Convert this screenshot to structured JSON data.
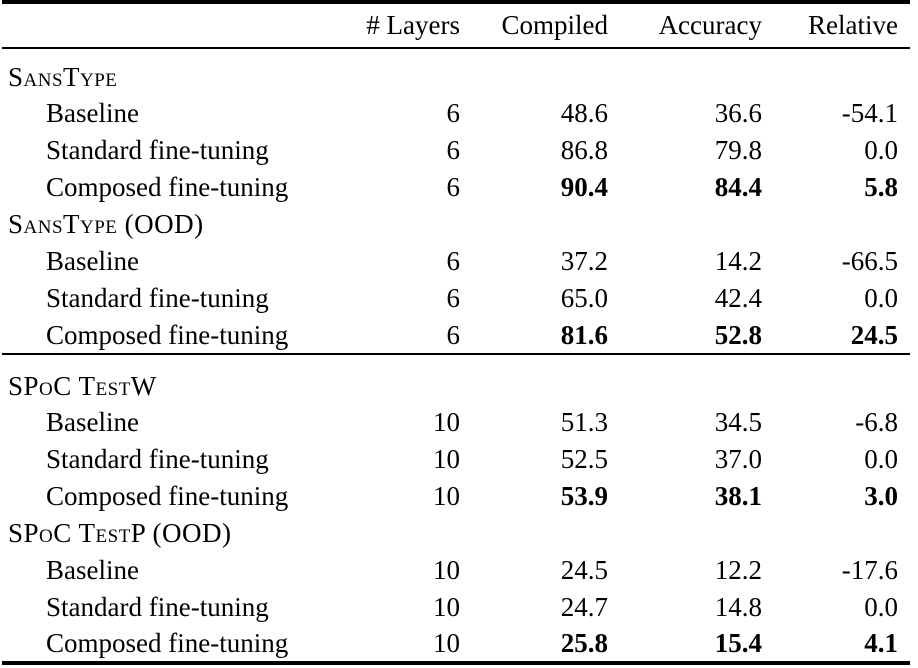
{
  "colors": {
    "text": "#000000",
    "background": "#ffffff"
  },
  "table": {
    "columns": [
      "",
      "# Layers",
      "Compiled",
      "Accuracy",
      "Relative"
    ],
    "sections": [
      {
        "title": "SansType",
        "rule_above": false,
        "rows": [
          {
            "label": "Baseline",
            "layers": "6",
            "compiled": "48.6",
            "accuracy": "36.6",
            "relative": "-54.1",
            "bold": false
          },
          {
            "label": "Standard fine-tuning",
            "layers": "6",
            "compiled": "86.8",
            "accuracy": "79.8",
            "relative": "0.0",
            "bold": false
          },
          {
            "label": "Composed fine-tuning",
            "layers": "6",
            "compiled": "90.4",
            "accuracy": "84.4",
            "relative": "5.8",
            "bold": true
          }
        ]
      },
      {
        "title": "SansType (OOD)",
        "rule_above": false,
        "rows": [
          {
            "label": "Baseline",
            "layers": "6",
            "compiled": "37.2",
            "accuracy": "14.2",
            "relative": "-66.5",
            "bold": false
          },
          {
            "label": "Standard fine-tuning",
            "layers": "6",
            "compiled": "65.0",
            "accuracy": "42.4",
            "relative": "0.0",
            "bold": false
          },
          {
            "label": "Composed fine-tuning",
            "layers": "6",
            "compiled": "81.6",
            "accuracy": "52.8",
            "relative": "24.5",
            "bold": true
          }
        ]
      },
      {
        "title": "SPoC TestW",
        "rule_above": true,
        "rows": [
          {
            "label": "Baseline",
            "layers": "10",
            "compiled": "51.3",
            "accuracy": "34.5",
            "relative": "-6.8",
            "bold": false
          },
          {
            "label": "Standard fine-tuning",
            "layers": "10",
            "compiled": "52.5",
            "accuracy": "37.0",
            "relative": "0.0",
            "bold": false
          },
          {
            "label": "Composed fine-tuning",
            "layers": "10",
            "compiled": "53.9",
            "accuracy": "38.1",
            "relative": "3.0",
            "bold": true
          }
        ]
      },
      {
        "title": "SPoC TestP (OOD)",
        "rule_above": false,
        "rows": [
          {
            "label": "Baseline",
            "layers": "10",
            "compiled": "24.5",
            "accuracy": "12.2",
            "relative": "-17.6",
            "bold": false
          },
          {
            "label": "Standard fine-tuning",
            "layers": "10",
            "compiled": "24.7",
            "accuracy": "14.8",
            "relative": "0.0",
            "bold": false
          },
          {
            "label": "Composed fine-tuning",
            "layers": "10",
            "compiled": "25.8",
            "accuracy": "15.4",
            "relative": "4.1",
            "bold": true
          }
        ]
      }
    ]
  }
}
